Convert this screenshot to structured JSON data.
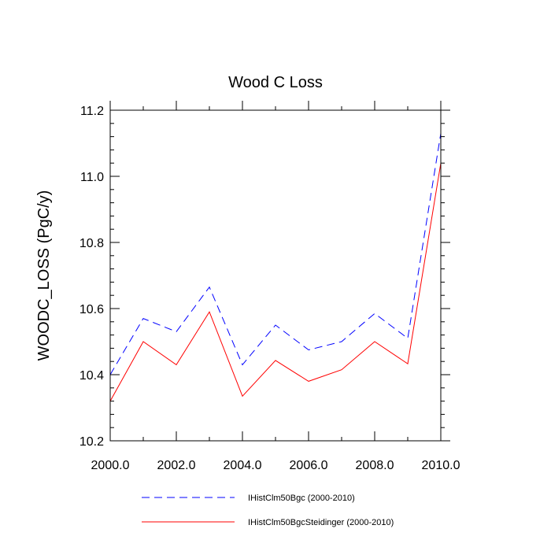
{
  "chart_data": {
    "type": "line",
    "title": "Wood C Loss",
    "xlabel": "",
    "ylabel": "WOODC_LOSS  (PgC/y)",
    "xlim": [
      2000,
      2010
    ],
    "ylim": [
      10.2,
      11.2
    ],
    "x_ticks": [
      2000,
      2002,
      2004,
      2006,
      2008,
      2010
    ],
    "x_tick_labels": [
      "2000.0",
      "2002.0",
      "2004.0",
      "2006.0",
      "2008.0",
      "2010.0"
    ],
    "y_ticks": [
      10.2,
      10.4,
      10.6,
      10.8,
      11.0,
      11.2
    ],
    "y_tick_labels": [
      "10.2",
      "10.4",
      "10.6",
      "10.8",
      "11.0",
      "11.2"
    ],
    "x": [
      2000,
      2001,
      2002,
      2003,
      2004,
      2005,
      2006,
      2007,
      2008,
      2009,
      2010
    ],
    "grid": false,
    "legend_position": "bottom",
    "series": [
      {
        "name": "IHistClm50Bgc (2000-2010)",
        "color": "#0000ff",
        "style": "dashed",
        "values": [
          10.4,
          10.57,
          10.53,
          10.665,
          10.43,
          10.55,
          10.475,
          10.5,
          10.585,
          10.51,
          11.13
        ]
      },
      {
        "name": "IHistClm50BgcSteidinger (2000-2010)",
        "color": "#ff0000",
        "style": "solid",
        "values": [
          10.32,
          10.5,
          10.43,
          10.59,
          10.335,
          10.443,
          10.38,
          10.415,
          10.5,
          10.433,
          11.04
        ]
      }
    ]
  }
}
